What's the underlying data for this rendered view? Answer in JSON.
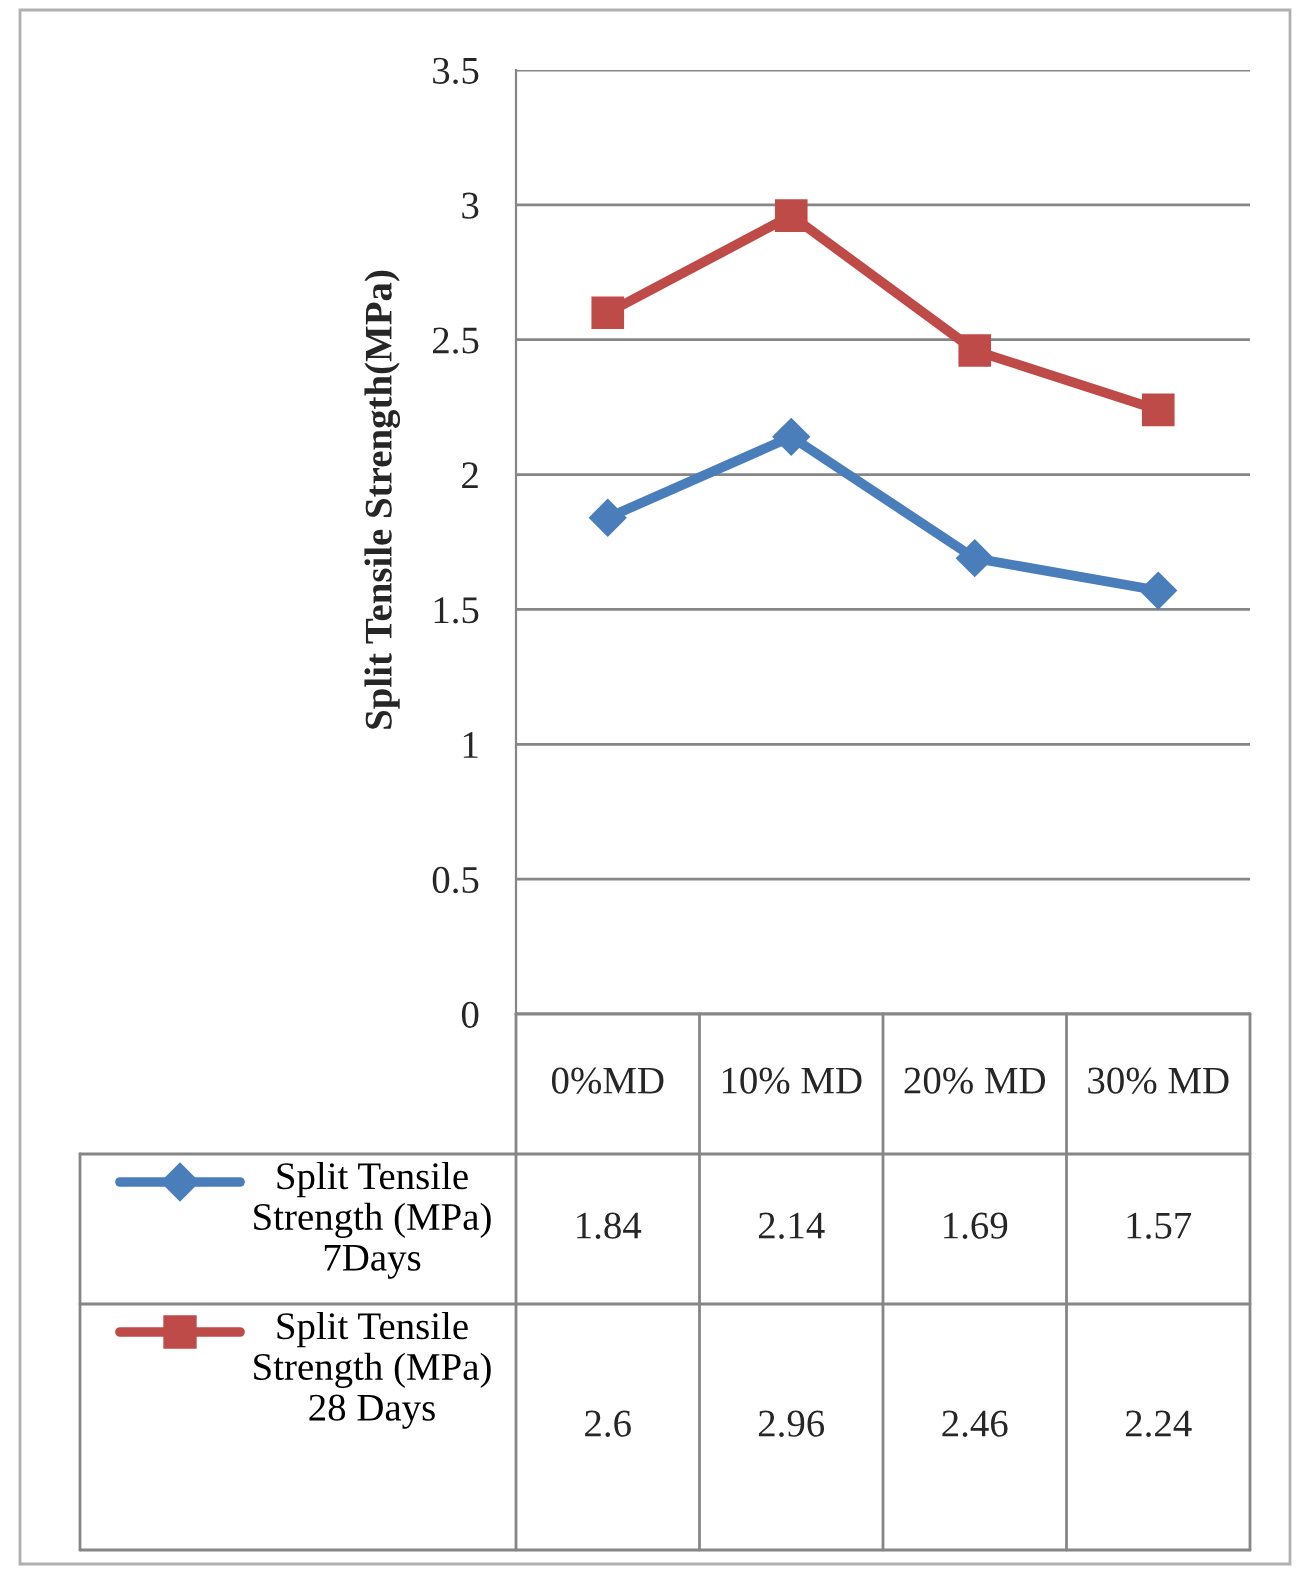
{
  "chart_data": {
    "type": "line",
    "ylabel": "Split Tensile Strength(MPa)",
    "categories": [
      "0%MD",
      "10% MD",
      "20% MD",
      "30% MD"
    ],
    "series": [
      {
        "name": "Split Tensile Strength (MPa) 7Days",
        "color": "#4a7ebb",
        "marker": "diamond",
        "values": [
          1.84,
          2.14,
          1.69,
          1.57
        ]
      },
      {
        "name": "Split Tensile Strength (MPa) 28 Days",
        "color": "#be4b48",
        "marker": "square",
        "values": [
          2.6,
          2.96,
          2.46,
          2.24
        ]
      }
    ],
    "ylim": [
      0,
      3.5
    ],
    "yticks": [
      0,
      0.5,
      1,
      1.5,
      2,
      2.5,
      3,
      3.5
    ],
    "grid": "y",
    "legend": "bottom",
    "data_labels": true,
    "line_style": "solid"
  }
}
